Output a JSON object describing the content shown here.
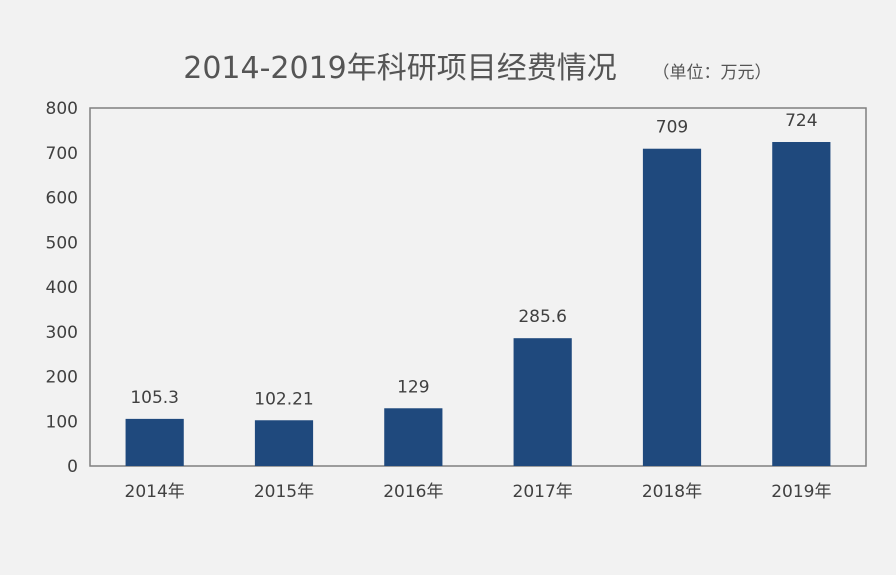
{
  "chart_data": {
    "type": "bar",
    "title": "2014-2019年科研项目经费情况",
    "subtitle": "（单位：万元）",
    "categories": [
      "2014年",
      "2015年",
      "2016年",
      "2017年",
      "2018年",
      "2019年"
    ],
    "values": [
      105.3,
      102.21,
      129,
      285.6,
      709,
      724
    ],
    "data_labels": [
      "105.3",
      "102.21",
      "129",
      "285.6",
      "709",
      "724"
    ],
    "xlabel": "",
    "ylabel": "",
    "ylim": [
      0,
      800
    ],
    "yticks": [
      0,
      100,
      200,
      300,
      400,
      500,
      600,
      700,
      800
    ],
    "grid": false,
    "legend": "none",
    "colors": {
      "bar": "#1f497d",
      "axis": "#808080"
    }
  }
}
